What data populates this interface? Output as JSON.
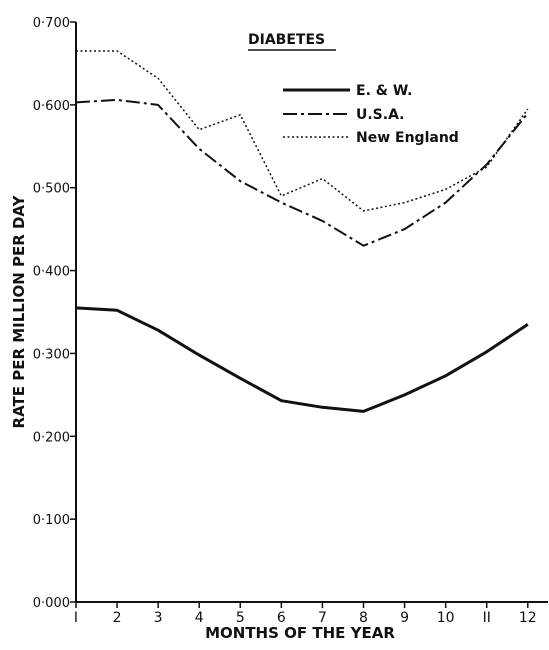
{
  "chart_data": {
    "type": "line",
    "title": "DIABETES",
    "xlabel": "MONTHS OF THE YEAR",
    "ylabel": "RATE PER MILLION PER DAY",
    "x": [
      1,
      2,
      3,
      4,
      5,
      6,
      7,
      8,
      9,
      10,
      11,
      12
    ],
    "xtick_labels": [
      "I",
      "2",
      "3",
      "4",
      "5",
      "6",
      "7",
      "8",
      "9",
      "10",
      "II",
      "12"
    ],
    "xlim": [
      1,
      12.2
    ],
    "ylim": [
      0,
      0.7
    ],
    "yticks": [
      0,
      0.1,
      0.2,
      0.3,
      0.4,
      0.5,
      0.6,
      0.7
    ],
    "ytick_labels": [
      "0·000",
      "0·100",
      "0·200",
      "0·300",
      "0·400",
      "0·500",
      "0·600",
      "0·700"
    ],
    "grid": false,
    "legend_position": "top-right",
    "series": [
      {
        "name": "E. & W.",
        "style": "solid",
        "values": [
          0.355,
          0.352,
          0.328,
          0.298,
          0.27,
          0.243,
          0.235,
          0.23,
          0.25,
          0.273,
          0.302,
          0.335
        ]
      },
      {
        "name": "U.S.A.",
        "style": "dashdot",
        "values": [
          0.603,
          0.606,
          0.6,
          0.547,
          0.508,
          0.482,
          0.46,
          0.43,
          0.45,
          0.482,
          0.528,
          0.59
        ]
      },
      {
        "name": "New England",
        "style": "dotted",
        "values": [
          0.665,
          0.665,
          0.632,
          0.57,
          0.588,
          0.49,
          0.511,
          0.472,
          0.482,
          0.498,
          0.525,
          0.595
        ]
      }
    ]
  }
}
